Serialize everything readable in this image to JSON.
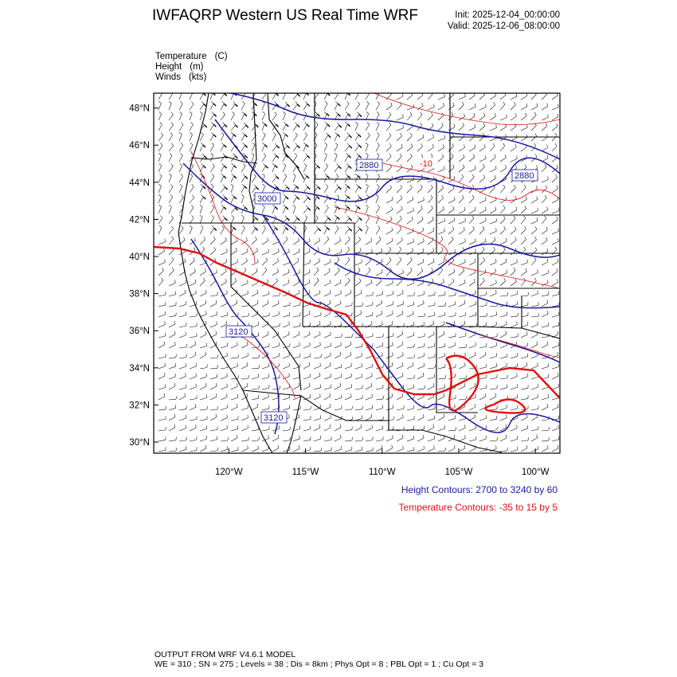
{
  "header": {
    "title": "IWFAQRP Western US Real Time WRF",
    "init_label": "Init: 2025-12-04_00:00:00",
    "valid_label": "Valid: 2025-12-06_08:00:00"
  },
  "fields": [
    {
      "name": "Temperature",
      "unit": "(C)"
    },
    {
      "name": "Height",
      "unit": "(m)"
    },
    {
      "name": "Winds",
      "unit": "(kts)"
    }
  ],
  "map": {
    "lat_ticks": [
      "48°N",
      "46°N",
      "44°N",
      "42°N",
      "40°N",
      "38°N",
      "36°N",
      "34°N",
      "32°N",
      "30°N"
    ],
    "lon_ticks": [
      "120°W",
      "115°W",
      "110°W",
      "105°W",
      "100°W"
    ],
    "lat_range": [
      29.4,
      48.8
    ],
    "lon_range": [
      -124.9,
      -98.4
    ],
    "contour_labels": {
      "height": [
        "2880",
        "2880",
        "3000",
        "3120",
        "3120"
      ],
      "temperature": [
        "-10"
      ]
    },
    "colors": {
      "height_contour": "#1a1aa0",
      "temperature_contour": "#e01010",
      "wind_barb": "#000000",
      "boundary": "#000000"
    }
  },
  "legend": {
    "height": "Height Contours: 2700 to 3240 by 60",
    "temperature": "Temperature Contours: -35 to 15 by 5"
  },
  "footer": {
    "line1": "OUTPUT FROM WRF V4.6.1 MODEL",
    "line2": "WE = 310 ; SN = 275 ; Levels = 38 ; Dis = 8km ; Phys Opt = 8 ; PBL Opt = 1 ; Cu Opt = 3"
  }
}
